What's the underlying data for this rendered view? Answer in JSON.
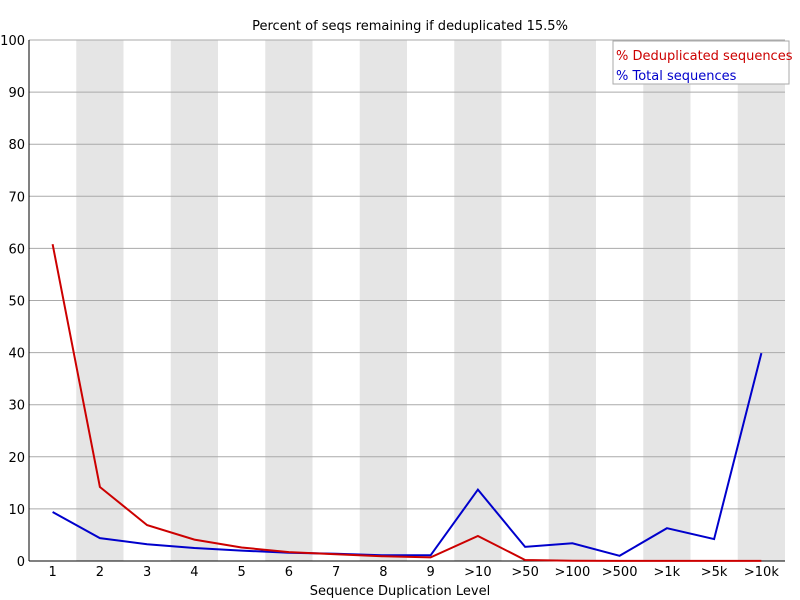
{
  "chart_data": {
    "type": "line",
    "title": "Percent of seqs remaining if deduplicated 15.5%",
    "xlabel": "Sequence Duplication Level",
    "ylabel": "",
    "ylim": [
      0,
      100
    ],
    "yticks": [
      0,
      10,
      20,
      30,
      40,
      50,
      60,
      70,
      80,
      90,
      100
    ],
    "grid": true,
    "legend_position": "top-right",
    "categories": [
      "1",
      "2",
      "3",
      "4",
      "5",
      "6",
      "7",
      "8",
      "9",
      ">10",
      ">50",
      ">100",
      ">500",
      ">1k",
      ">5k",
      ">10k"
    ],
    "series": [
      {
        "name": "% Deduplicated sequences",
        "color": "#cc0000",
        "values": [
          60.8,
          14.2,
          6.9,
          4.1,
          2.6,
          1.7,
          1.3,
          0.9,
          0.7,
          4.8,
          0.2,
          0.05,
          0.02,
          0.01,
          0.01,
          0.01
        ]
      },
      {
        "name": "% Total sequences",
        "color": "#0000cc",
        "values": [
          9.4,
          4.4,
          3.2,
          2.5,
          2.0,
          1.6,
          1.4,
          1.1,
          1.1,
          13.7,
          2.7,
          3.4,
          1.0,
          6.3,
          4.2,
          39.9
        ]
      }
    ]
  }
}
